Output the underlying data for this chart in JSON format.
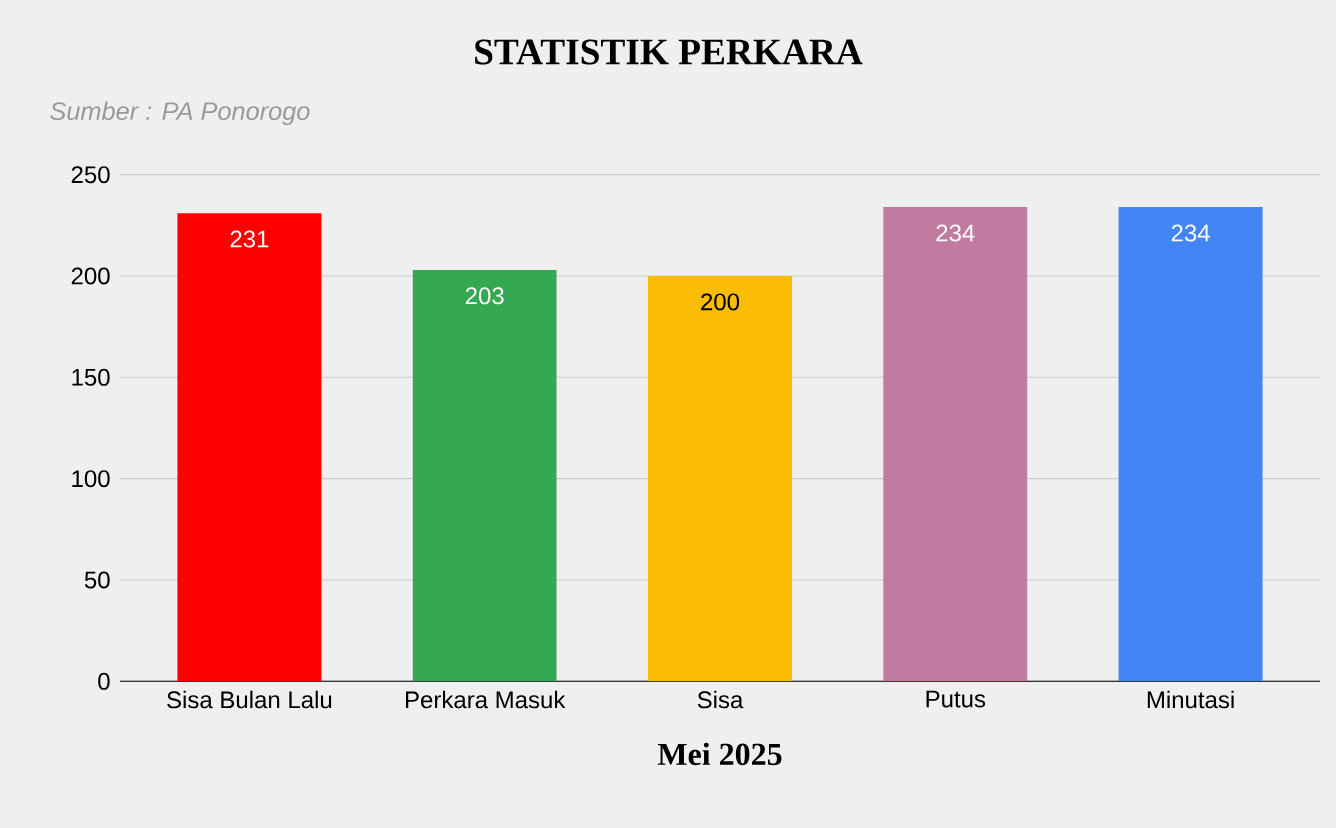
{
  "chart_data": {
    "type": "bar",
    "title": "STATISTIK PERKARA",
    "annotations": [
      "Sumber : PA Ponorogo"
    ],
    "xlabel": "Mei 2025",
    "categories": [
      "Sisa Bulan Lalu",
      "Perkara Masuk",
      "Sisa",
      "Putus",
      "Minutasi"
    ],
    "values": [
      231,
      203,
      200,
      234,
      234
    ],
    "colors": [
      "#ff0000",
      "#34a853",
      "#fbbc04",
      "#c27ba0",
      "#4285f4"
    ],
    "ylim": [
      0,
      250
    ],
    "yticks": [
      0,
      50,
      100,
      150,
      200,
      250
    ],
    "grid": "y",
    "data_labels": true
  }
}
